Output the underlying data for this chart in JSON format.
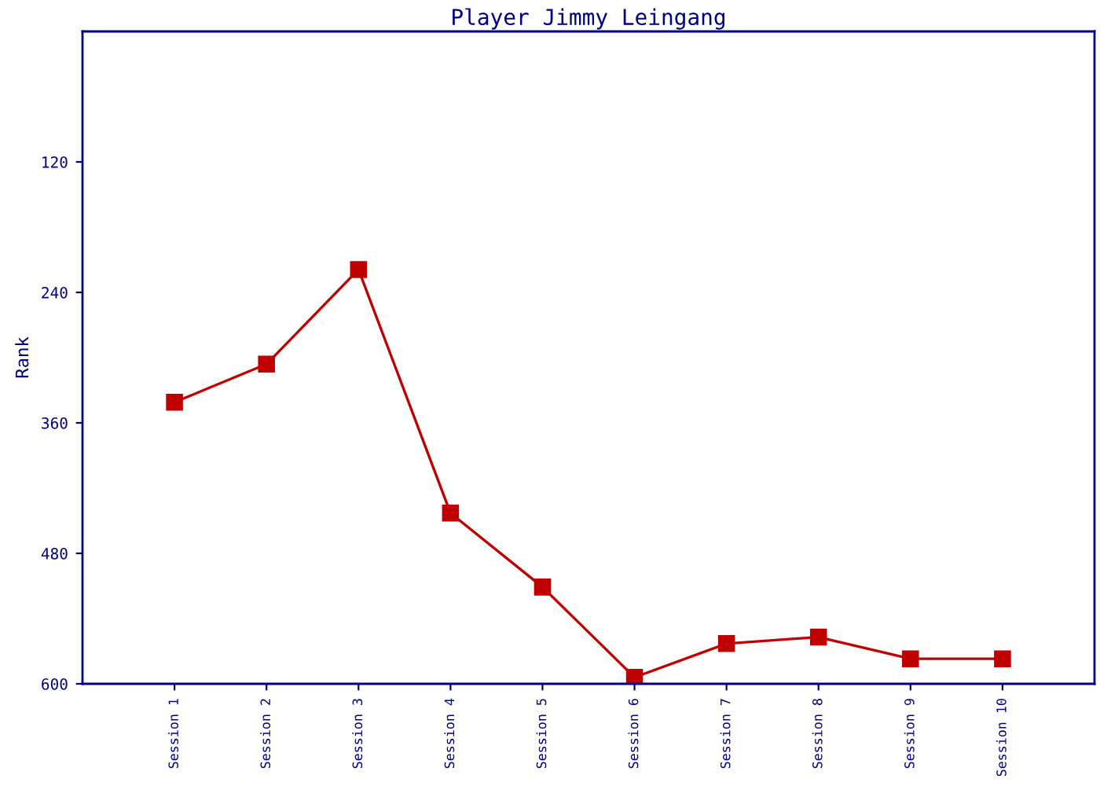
{
  "chart_data": {
    "type": "line",
    "title": "Player Jimmy Leingang",
    "ylabel": "Rank",
    "categories": [
      "Session 1",
      "Session 2",
      "Session 3",
      "Session 4",
      "Session 5",
      "Session 6",
      "Session 7",
      "Session 8",
      "Session 9",
      "Session 10"
    ],
    "series": [
      {
        "color": "#c00000",
        "values": [
          341,
          306,
          219,
          443,
          511,
          594,
          563,
          557,
          577,
          577
        ]
      }
    ],
    "ylim": [
      600,
      0
    ],
    "yticks": [
      120,
      240,
      360,
      480,
      600
    ],
    "grid": false,
    "marker": "square",
    "line_style": "solid"
  }
}
